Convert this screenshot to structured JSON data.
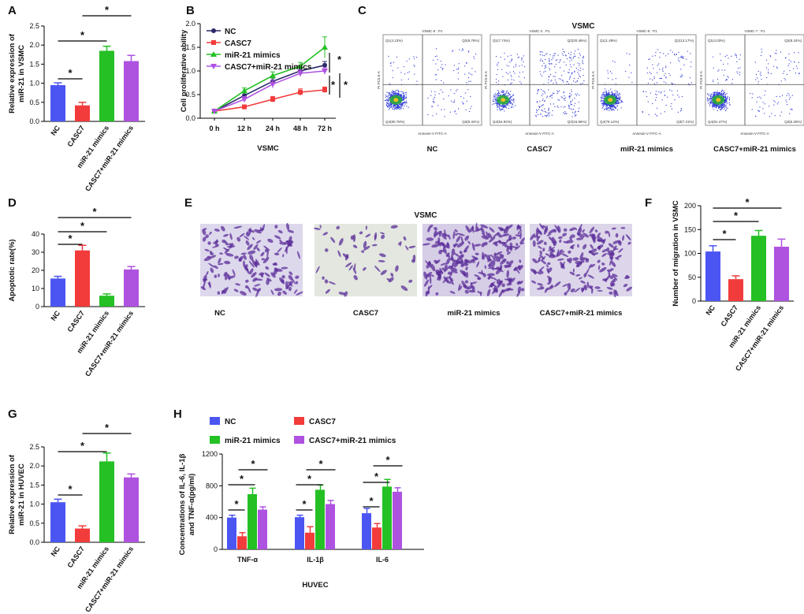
{
  "colors": {
    "nc": "#4b55f2",
    "casc7": "#f23b3b",
    "mir21": "#24c024",
    "combo": "#ae52e0"
  },
  "panel_labels": [
    "A",
    "B",
    "C",
    "D",
    "E",
    "F",
    "G",
    "H"
  ],
  "chart_data": [
    {
      "id": "A",
      "type": "bar",
      "categories": [
        "NC",
        "CASC7",
        "miR-21 mimics",
        "CASC7+miR-21 mimics"
      ],
      "values": [
        0.95,
        0.42,
        1.85,
        1.58
      ],
      "errors": [
        0.06,
        0.08,
        0.12,
        0.15
      ],
      "ylabel": "Relative expression of miR-21 in VSMC",
      "ylim": [
        0,
        2.5
      ],
      "yticks": [
        "0.0",
        "0.5",
        "1.0",
        "1.5",
        "2.0",
        "2.5"
      ],
      "significance": [
        "*",
        "*",
        "*"
      ]
    },
    {
      "id": "B",
      "type": "line",
      "x": [
        "0 h",
        "12 h",
        "24 h",
        "48 h",
        "72 h"
      ],
      "series": [
        {
          "name": "NC",
          "values": [
            0.15,
            0.48,
            0.78,
            1.0,
            1.12
          ],
          "errors": [
            0.02,
            0.06,
            0.07,
            0.08,
            0.08
          ]
        },
        {
          "name": "CASC7",
          "values": [
            0.15,
            0.24,
            0.4,
            0.55,
            0.6
          ],
          "errors": [
            0.02,
            0.04,
            0.06,
            0.07,
            0.06
          ]
        },
        {
          "name": "miR-21 mimics",
          "values": [
            0.15,
            0.58,
            0.9,
            1.1,
            1.5
          ],
          "errors": [
            0.02,
            0.06,
            0.08,
            0.08,
            0.22
          ]
        },
        {
          "name": "CASC7+miR-21 mimics",
          "values": [
            0.15,
            0.4,
            0.72,
            0.95,
            1.0
          ],
          "errors": [
            0.02,
            0.06,
            0.08,
            0.07,
            0.07
          ]
        }
      ],
      "xlabel": "VSMC",
      "ylabel": "Cell proliferative ability",
      "ylim": [
        0,
        2.0
      ],
      "yticks": [
        "0.0",
        "0.5",
        "1.0",
        "1.5",
        "2.0"
      ],
      "significance": [
        "*",
        "*",
        "*"
      ]
    },
    {
      "id": "C",
      "type": "scatter",
      "title": "VSMC",
      "plots": [
        {
          "name": "NC",
          "header": "VSMC-5 : P1",
          "q1": "Q1(4.13%)",
          "q2": "Q2(6.76%)",
          "q3": "Q3(8.34%)",
          "q4": "Q4(80.78%)"
        },
        {
          "name": "CASC7",
          "header": "VSMC-2 : P1",
          "q1": "Q1(7.74%)",
          "q2": "Q2(20.46%)",
          "q3": "Q3(16.86%)",
          "q4": "Q4(54.92%)"
        },
        {
          "name": "miR-21 mimics",
          "header": "VSMC-8 : P1",
          "q1": "Q1(1.48%)",
          "q2": "Q2(13.17%)",
          "q3": "Q3(7.21%)",
          "q4": "Q4(78.14%)"
        },
        {
          "name": "CASC7+miR-21 mimics",
          "header": "VSMC-7 : P1",
          "q1": "Q1(4.03%)",
          "q2": "Q2(8.24%)",
          "q3": "Q3(6.26%)",
          "q4": "Q4(81.47%)"
        }
      ],
      "xaxis": "Annexin-V FITC-A",
      "yaxis": "PI PC5.5-A"
    },
    {
      "id": "D",
      "type": "bar",
      "categories": [
        "NC",
        "CASC7",
        "miR-21 mimics",
        "CASC7+miR-21 mimics"
      ],
      "values": [
        15.5,
        31,
        6,
        20.5
      ],
      "errors": [
        1.2,
        2.8,
        1.0,
        1.6
      ],
      "ylabel": "Apoptotic rate(%)",
      "ylim": [
        0,
        40
      ],
      "yticks": [
        "0",
        "10",
        "20",
        "30",
        "40"
      ],
      "significance": [
        "*",
        "*",
        "*"
      ]
    },
    {
      "id": "E",
      "type": "table",
      "title": "VSMC",
      "images": [
        "NC",
        "CASC7",
        "miR-21 mimics",
        "CASC7+miR-21 mimics"
      ]
    },
    {
      "id": "F",
      "type": "bar",
      "categories": [
        "NC",
        "CASC7",
        "miR-21 mimics",
        "CASC7+miR-21 mimics"
      ],
      "values": [
        104,
        46,
        137,
        114
      ],
      "errors": [
        12,
        7,
        11,
        16
      ],
      "ylabel": "Number of migration in VSMC",
      "ylim": [
        0,
        200
      ],
      "yticks": [
        "0",
        "50",
        "100",
        "150",
        "200"
      ],
      "significance": [
        "*",
        "*",
        "*"
      ]
    },
    {
      "id": "G",
      "type": "bar",
      "categories": [
        "NC",
        "CASC7",
        "miR-21 mimics",
        "CASC7+miR-21 mimics"
      ],
      "values": [
        1.05,
        0.36,
        2.12,
        1.7
      ],
      "errors": [
        0.08,
        0.07,
        0.22,
        0.09
      ],
      "ylabel": "Relative expression of miR-21 in HUVEC",
      "ylim": [
        0,
        2.5
      ],
      "yticks": [
        "0.0",
        "0.5",
        "1.0",
        "1.5",
        "2.0",
        "2.5"
      ],
      "significance": [
        "*",
        "*",
        "*"
      ]
    },
    {
      "id": "H",
      "type": "bar",
      "categories": [
        "TNF-α",
        "IL-1β",
        "IL-6"
      ],
      "series": [
        {
          "name": "NC",
          "values": [
            400,
            405,
            455
          ],
          "errors": [
            30,
            25,
            60
          ]
        },
        {
          "name": "CASC7",
          "values": [
            165,
            210,
            275
          ],
          "errors": [
            45,
            75,
            50
          ]
        },
        {
          "name": "miR-21 mimics",
          "values": [
            695,
            750,
            790
          ],
          "errors": [
            75,
            60,
            90
          ]
        },
        {
          "name": "CASC7+miR-21 mimics",
          "values": [
            500,
            570,
            725
          ],
          "errors": [
            35,
            45,
            50
          ]
        }
      ],
      "xlabel": "HUVEC",
      "ylabel": "Concentrations of IL-6, IL-1β and TNF-α(pg/ml)",
      "ylim": [
        0,
        1200
      ],
      "yticks": [
        "0",
        "400",
        "800",
        "1200"
      ],
      "significance": [
        "*",
        "*",
        "*"
      ]
    }
  ]
}
